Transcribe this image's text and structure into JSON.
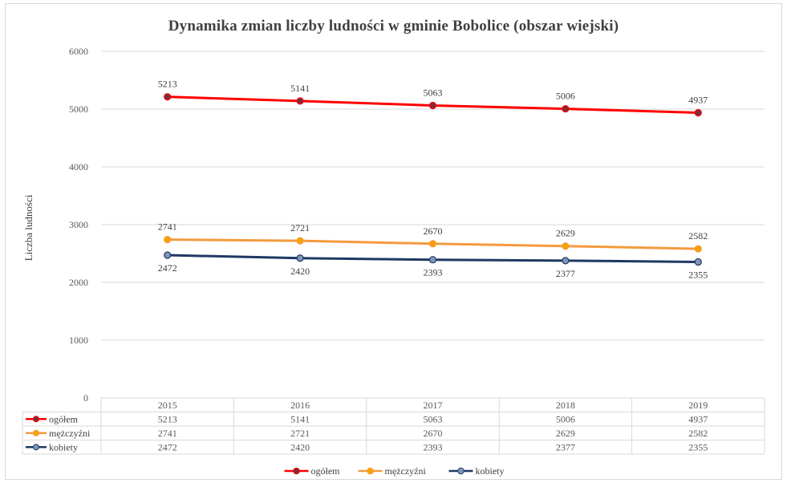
{
  "chart_data": {
    "type": "line",
    "title": "Dynamika zmian liczby ludności w gminie Bobolice (obszar wiejski)",
    "ylabel": "Liczba ludności",
    "ylim": [
      0,
      6000
    ],
    "yticks": [
      0,
      1000,
      2000,
      3000,
      4000,
      5000,
      6000
    ],
    "categories": [
      "2015",
      "2016",
      "2017",
      "2018",
      "2019"
    ],
    "grid": true,
    "legend": "bottom",
    "data_table": true,
    "series": [
      {
        "name": "ogółem",
        "color": "#ff0000",
        "marker_color": "#7a2e3e",
        "values": [
          5213,
          5141,
          5063,
          5006,
          4937
        ]
      },
      {
        "name": "mężczyźni",
        "color": "#f59a3e",
        "marker_color": "#f5a300",
        "values": [
          2741,
          2721,
          2670,
          2629,
          2582
        ]
      },
      {
        "name": "kobiety",
        "color": "#1f3864",
        "marker_color": "#7f96b6",
        "values": [
          2472,
          2420,
          2393,
          2377,
          2355
        ]
      }
    ]
  }
}
